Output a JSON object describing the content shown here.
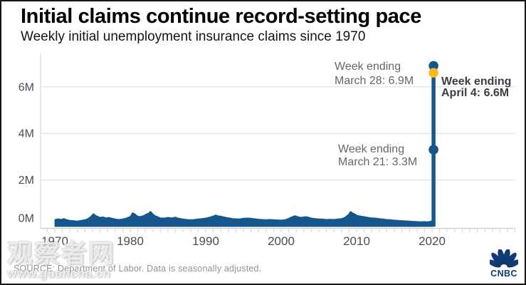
{
  "header": {
    "title": "Initial claims continue record-setting pace",
    "subtitle": "Weekly initial unemployment insurance claims since 1970"
  },
  "chart_data": {
    "type": "area",
    "title": "Initial claims continue record-setting pace",
    "subtitle": "Weekly initial unemployment insurance claims since 1970",
    "unit": "millions of initial claims per week",
    "grid": "horizontal",
    "legend": "none",
    "xlim": [
      1969,
      2031
    ],
    "ylim": [
      0,
      7.3
    ],
    "x_ticks": [
      1970,
      1980,
      1990,
      2000,
      2010,
      2020
    ],
    "x_tick_labels": [
      "1970",
      "1980",
      "1990",
      "2000",
      "2010",
      "2020"
    ],
    "y_ticks": [
      0,
      2,
      4,
      6
    ],
    "y_tick_labels": [
      "0M",
      "2M",
      "4M",
      "6M"
    ],
    "series": [
      {
        "name": "Weekly initial unemployment insurance claims (millions, seasonally adjusted)",
        "x": [
          1970.0,
          1970.4,
          1970.8,
          1971.2,
          1971.6,
          1972.0,
          1972.5,
          1973.0,
          1973.5,
          1974.0,
          1974.4,
          1974.8,
          1975.1,
          1975.4,
          1975.7,
          1976.0,
          1976.4,
          1976.8,
          1977.2,
          1977.6,
          1978.0,
          1978.5,
          1979.0,
          1979.5,
          1980.0,
          1980.3,
          1980.6,
          1980.9,
          1981.2,
          1981.5,
          1981.8,
          1982.1,
          1982.4,
          1982.7,
          1983.0,
          1983.3,
          1983.7,
          1984.0,
          1984.5,
          1985.0,
          1985.5,
          1986.0,
          1986.3,
          1986.7,
          1987.0,
          1987.5,
          1988.0,
          1988.5,
          1989.0,
          1989.5,
          1990.0,
          1990.5,
          1991.0,
          1991.3,
          1991.6,
          1992.0,
          1992.4,
          1992.8,
          1993.2,
          1993.6,
          1994.0,
          1994.5,
          1995.0,
          1995.5,
          1996.0,
          1996.5,
          1997.0,
          1997.5,
          1998.0,
          1998.5,
          1999.0,
          1999.5,
          2000.0,
          2000.5,
          2001.0,
          2001.4,
          2001.8,
          2002.2,
          2002.6,
          2003.0,
          2003.3,
          2003.7,
          2004.0,
          2004.5,
          2005.0,
          2005.5,
          2006.0,
          2006.5,
          2007.0,
          2007.5,
          2008.0,
          2008.3,
          2008.6,
          2008.9,
          2009.2,
          2009.5,
          2009.8,
          2010.1,
          2010.5,
          2011.0,
          2011.5,
          2012.0,
          2012.5,
          2013.0,
          2013.5,
          2014.0,
          2014.5,
          2015.0,
          2015.5,
          2016.0,
          2016.5,
          2017.0,
          2017.5,
          2018.0,
          2018.5,
          2019.0,
          2019.5,
          2020.0,
          2020.1
        ],
        "y": [
          0.3,
          0.34,
          0.31,
          0.35,
          0.3,
          0.27,
          0.26,
          0.24,
          0.27,
          0.3,
          0.35,
          0.45,
          0.56,
          0.49,
          0.44,
          0.4,
          0.42,
          0.38,
          0.4,
          0.36,
          0.33,
          0.31,
          0.33,
          0.37,
          0.44,
          0.6,
          0.55,
          0.47,
          0.43,
          0.45,
          0.48,
          0.54,
          0.58,
          0.66,
          0.55,
          0.47,
          0.42,
          0.38,
          0.37,
          0.4,
          0.38,
          0.41,
          0.37,
          0.35,
          0.33,
          0.31,
          0.3,
          0.31,
          0.33,
          0.35,
          0.37,
          0.41,
          0.46,
          0.5,
          0.47,
          0.45,
          0.42,
          0.39,
          0.37,
          0.35,
          0.34,
          0.33,
          0.36,
          0.37,
          0.36,
          0.34,
          0.32,
          0.31,
          0.3,
          0.31,
          0.3,
          0.29,
          0.28,
          0.3,
          0.36,
          0.42,
          0.47,
          0.43,
          0.4,
          0.42,
          0.43,
          0.4,
          0.37,
          0.35,
          0.33,
          0.33,
          0.31,
          0.32,
          0.31,
          0.33,
          0.35,
          0.38,
          0.44,
          0.52,
          0.65,
          0.59,
          0.54,
          0.48,
          0.46,
          0.43,
          0.4,
          0.38,
          0.37,
          0.35,
          0.33,
          0.31,
          0.3,
          0.28,
          0.27,
          0.26,
          0.25,
          0.24,
          0.23,
          0.22,
          0.21,
          0.22,
          0.21,
          0.25,
          0.3
        ]
      }
    ],
    "spike": {
      "x": 2020.2,
      "base": 0,
      "top": 6.6
    },
    "markers": [
      {
        "x": 2020.2,
        "y": 6.9,
        "color_key": "blue",
        "label": "Week ending March 28: 6.9M"
      },
      {
        "x": 2020.2,
        "y": 3.3,
        "color_key": "blue",
        "label": "Week ending March 21: 3.3M"
      },
      {
        "x": 2020.2,
        "y": 6.6,
        "color_key": "gold",
        "label": "Week ending April 4: 6.6M"
      }
    ],
    "annotations": [
      {
        "id": "march28",
        "lines": [
          "Week ending",
          "March 28: 6.9M"
        ],
        "emphasis": false
      },
      {
        "id": "april4",
        "lines": [
          "Week ending",
          "April 4: 6.6M"
        ],
        "emphasis": true
      },
      {
        "id": "march21",
        "lines": [
          "Week ending",
          "March 21: 3.3M"
        ],
        "emphasis": false
      }
    ]
  },
  "colors": {
    "area_blue": "#15568c",
    "marker_blue": "#15568c",
    "marker_gold": "#ffb81c",
    "gridline": "#dcdcdc",
    "axis_line": "#d2d2d2",
    "tick_mark": "#cfcfcf",
    "tick_label": "#454f58",
    "annotation_gray": "#63686d",
    "annotation_dark": "#3a3f45"
  },
  "source": {
    "label": "SOURCE: Department of Labor. Data is seasonally adjusted."
  },
  "watermark": {
    "name": "观察者网",
    "url": "www.guancha.cn"
  },
  "logo": {
    "name": "CNBC"
  }
}
